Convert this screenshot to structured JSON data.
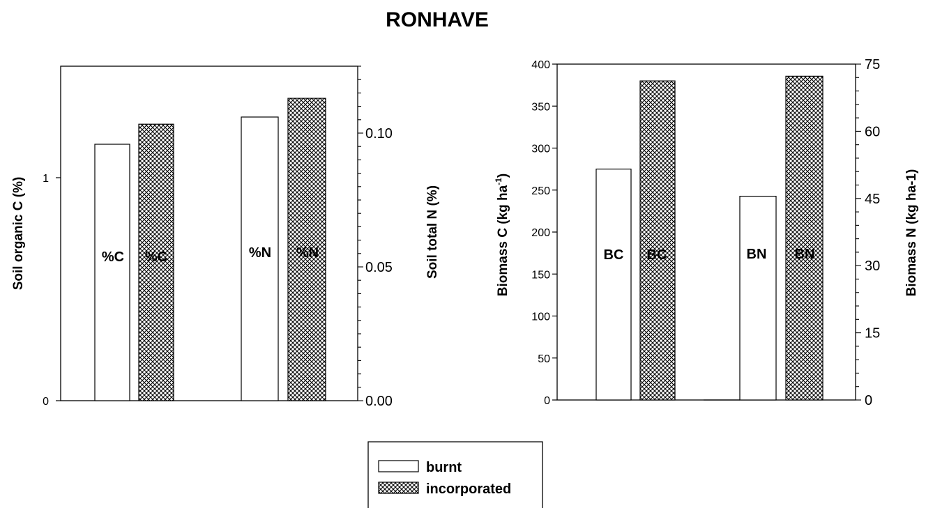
{
  "title": "RONHAVE",
  "chart_data": [
    {
      "type": "bar",
      "categories": [
        "%C",
        "%N"
      ],
      "series": [
        {
          "name": "burnt",
          "values": [
            1.15,
            0.106
          ]
        },
        {
          "name": "incorporated",
          "values": [
            1.24,
            0.113
          ]
        }
      ],
      "bar_labels": [
        [
          "%C",
          "%C"
        ],
        [
          "%N",
          "%N"
        ]
      ],
      "ylabel": "Soil organic C (%)",
      "y2label": "Soil total N (%)",
      "ylim": [
        0,
        1.5
      ],
      "y2lim": [
        0,
        0.125
      ],
      "yticks": [
        "0",
        "1"
      ],
      "y2ticks": [
        "0.00",
        "0.05",
        "0.10"
      ],
      "grid": false
    },
    {
      "type": "bar",
      "categories": [
        "BC",
        "BN"
      ],
      "series": [
        {
          "name": "burnt",
          "values": [
            275,
            45.5
          ]
        },
        {
          "name": "incorporated",
          "values": [
            380,
            72.3
          ]
        }
      ],
      "bar_labels": [
        [
          "BC",
          "BC"
        ],
        [
          "BN",
          "BN"
        ]
      ],
      "ylabel": "Biomass C (kg ha-1)",
      "y2label": "Biomass N (kg ha-1)",
      "ylim": [
        0,
        400
      ],
      "y2lim": [
        0,
        75
      ],
      "yticks": [
        "0",
        "50",
        "100",
        "150",
        "200",
        "250",
        "300",
        "350",
        "400"
      ],
      "y2ticks": [
        "0",
        "15",
        "30",
        "45",
        "60",
        "75"
      ],
      "grid": false
    }
  ],
  "legend": {
    "placement": "bottom-center",
    "items": [
      {
        "label": "burnt",
        "fill": "plain"
      },
      {
        "label": "incorporated",
        "fill": "crosshatch"
      }
    ]
  },
  "colors": {
    "ink": "#000000",
    "background": "#ffffff"
  }
}
